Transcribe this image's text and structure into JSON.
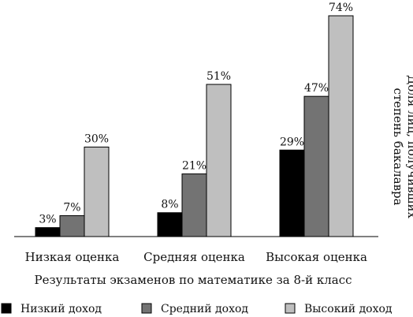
{
  "chart_data": {
    "type": "bar",
    "categories": [
      "Низкая оценка",
      "Средняя оценка",
      "Высокая оценка"
    ],
    "series": [
      {
        "name": "Низкий доход",
        "values": [
          3,
          8,
          29
        ],
        "color": "#000000"
      },
      {
        "name": "Средний доход",
        "values": [
          7,
          21,
          47
        ],
        "color": "#737373"
      },
      {
        "name": "Высокий доход",
        "values": [
          30,
          51,
          74
        ],
        "color": "#bfbfbf"
      }
    ],
    "value_labels": [
      [
        "3%",
        "8%",
        "29%"
      ],
      [
        "7%",
        "21%",
        "47%"
      ],
      [
        "30%",
        "51%",
        "74%"
      ]
    ],
    "xlabel": "Результаты экзаменов по математике за 8-й класс",
    "ylabel_lines": [
      "Доля лиц, получивших",
      "степень бакалавра"
    ],
    "ylim": [
      0,
      74
    ],
    "grid": false,
    "legend_position": "bottom"
  }
}
